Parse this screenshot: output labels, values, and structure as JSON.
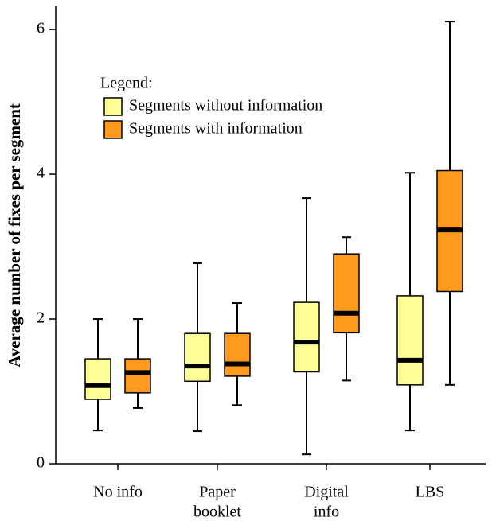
{
  "chart_data": {
    "type": "box",
    "y_label": "Average number of fixes per segment",
    "categories": [
      [
        "No info"
      ],
      [
        "Paper",
        "booklet"
      ],
      [
        "Digital",
        "info"
      ],
      [
        "LBS"
      ]
    ],
    "ylim": [
      0,
      6.32
    ],
    "yticks": [
      0,
      2,
      4,
      6
    ],
    "legend_title": "Legend:",
    "legend": "upper-left",
    "series": [
      {
        "name": "Segments without information",
        "color": "#ffff99",
        "values": [
          {
            "min": 0.46,
            "q1": 0.89,
            "median": 1.08,
            "q3": 1.45,
            "max": 2.0
          },
          {
            "min": 0.45,
            "q1": 1.14,
            "median": 1.35,
            "q3": 1.8,
            "max": 2.77
          },
          {
            "min": 0.13,
            "q1": 1.27,
            "median": 1.68,
            "q3": 2.23,
            "max": 3.67
          },
          {
            "min": 0.46,
            "q1": 1.09,
            "median": 1.43,
            "q3": 2.32,
            "max": 4.02
          }
        ]
      },
      {
        "name": "Segments with information",
        "color": "#ff9a1f",
        "values": [
          {
            "min": 0.77,
            "q1": 0.98,
            "median": 1.26,
            "q3": 1.45,
            "max": 2.0
          },
          {
            "min": 0.81,
            "q1": 1.21,
            "median": 1.38,
            "q3": 1.8,
            "max": 2.22
          },
          {
            "min": 1.15,
            "q1": 1.81,
            "median": 2.08,
            "q3": 2.9,
            "max": 3.13
          },
          {
            "min": 1.09,
            "q1": 2.38,
            "median": 3.23,
            "q3": 4.05,
            "max": 6.11
          }
        ]
      }
    ]
  }
}
